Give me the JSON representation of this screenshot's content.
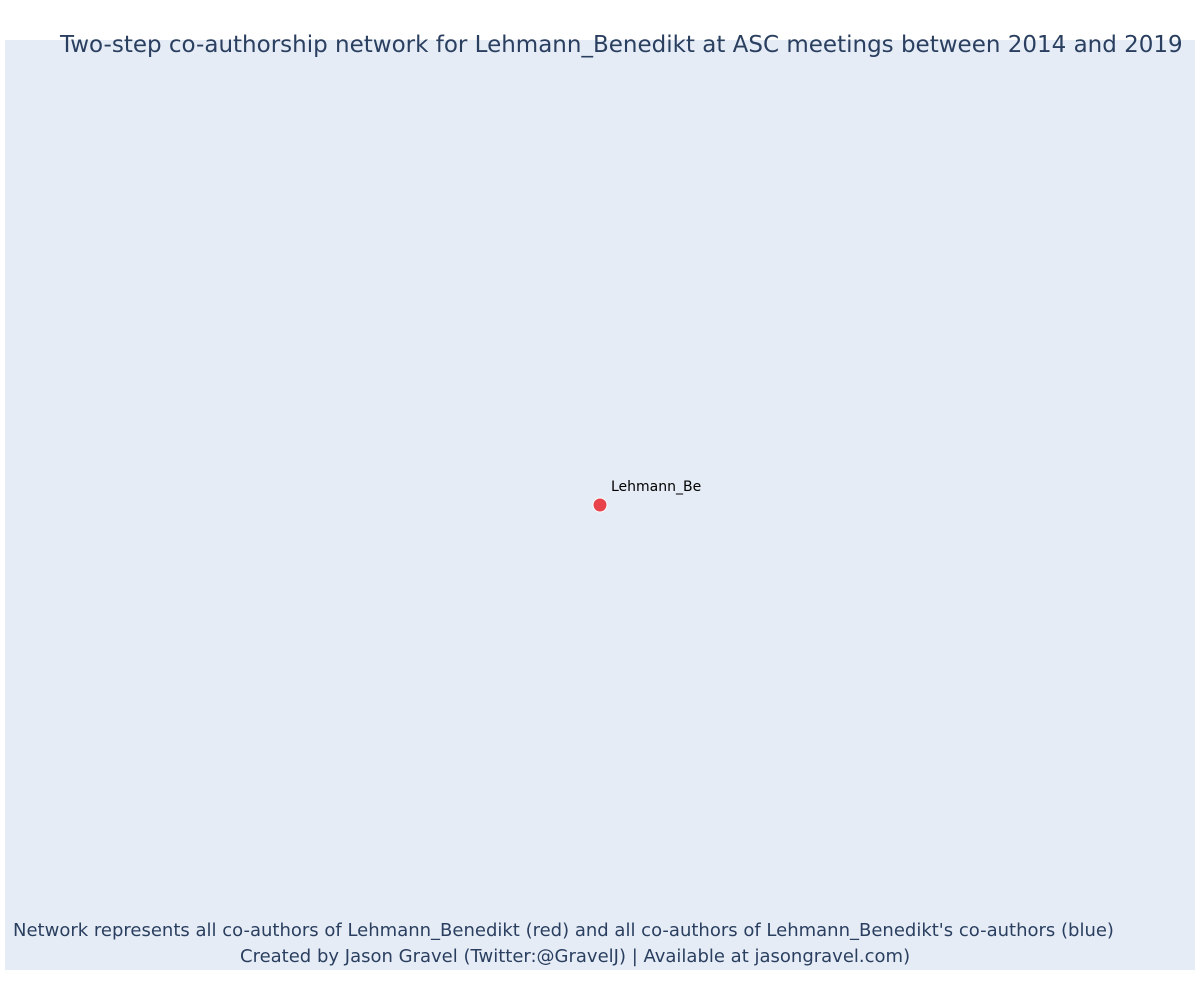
{
  "title": "Two-step co-authorship network for Lehmann_Benedikt at ASC meetings between 2014 and 2019",
  "caption": {
    "line1": "Network represents all co-authors of Lehmann_Benedikt (red) and all co-authors of Lehmann_Benedikt's co-authors (blue)",
    "line2": "Created by Jason Gravel (Twitter:@GravelJ) | Available at jasongravel.com)"
  },
  "colors": {
    "background": "#e5ecf6",
    "focal_node": "#e8424b",
    "coauthor_node": "#3b5bdb",
    "text": "#2a3f5f"
  },
  "chart_data": {
    "type": "scatter",
    "title": "Two-step co-authorship network for Lehmann_Benedikt at ASC meetings between 2014 and 2019",
    "grid": false,
    "axes_visible": false,
    "xlim": [
      -1,
      1
    ],
    "ylim": [
      -1,
      1
    ],
    "nodes": [
      {
        "label": "Lehmann_Be",
        "x": 0,
        "y": 0,
        "role": "focal"
      }
    ],
    "edges": []
  }
}
